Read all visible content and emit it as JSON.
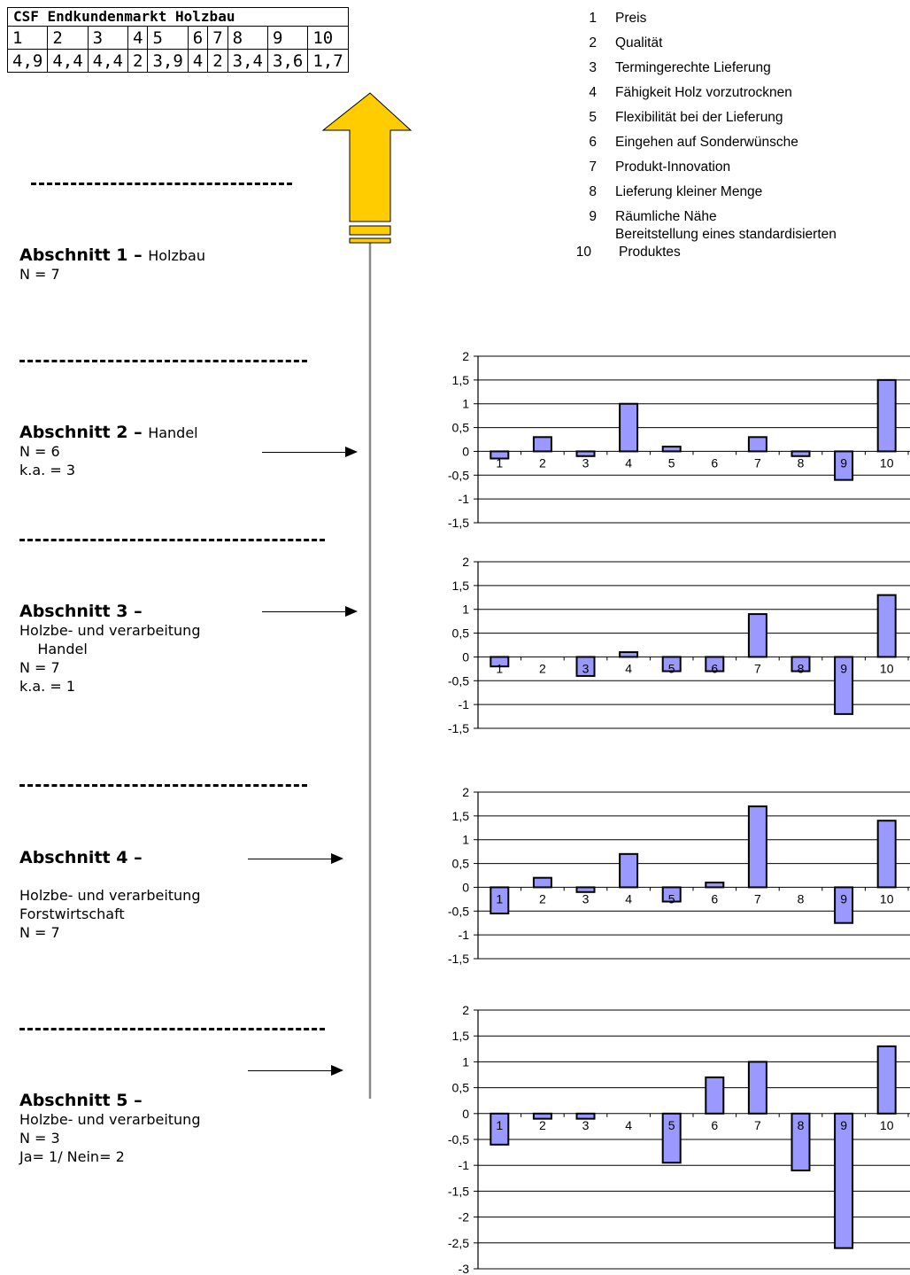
{
  "table": {
    "title": "CSF Endkundenmarkt Holzbau",
    "headers": [
      "1",
      "2",
      "3",
      "4",
      "5",
      "6",
      "7",
      "8",
      "9",
      "10"
    ],
    "values": [
      "4,9",
      "4,4",
      "4,4",
      "2",
      "3,9",
      "4",
      "2",
      "3,4",
      "3,6",
      "1,7"
    ]
  },
  "legend": [
    {
      "num": "1",
      "label": "Preis"
    },
    {
      "num": "2",
      "label": "Qualität"
    },
    {
      "num": "3",
      "label": "Termingerechte Lieferung"
    },
    {
      "num": "4",
      "label": "Fähigkeit Holz vorzutrocknen"
    },
    {
      "num": "5",
      "label": "Flexibilität bei der Lieferung"
    },
    {
      "num": "6",
      "label": "Eingehen auf Sonderwünsche"
    },
    {
      "num": "7",
      "label": "Produkt-Innovation"
    },
    {
      "num": "8",
      "label": "Lieferung kleiner Menge"
    },
    {
      "num": "9",
      "label": "Räumliche Nähe"
    },
    {
      "num": "",
      "label": "Bereitstellung eines standardisierten"
    },
    {
      "num": "10",
      "label": "Produktes"
    }
  ],
  "sections": [
    {
      "title": "Abschnitt 1",
      "dash": " – ",
      "subtitle": "Holzbau",
      "lines": "N = 7"
    },
    {
      "title": "Abschnitt 2",
      "dash": " – ",
      "subtitle": "Handel",
      "lines": "N = 6\nk.a. = 3"
    },
    {
      "title": "Abschnitt 3",
      "dash": " –",
      "subtitle": "",
      "lines": "Holzbe- und verarbeitung\n    Handel\nN = 7\nk.a. = 1"
    },
    {
      "title": "Abschnitt 4",
      "dash": " –",
      "subtitle": "",
      "lines": "\nHolzbe- und verarbeitung\nForstwirtschaft\nN = 7"
    },
    {
      "title": "Abschnitt 5",
      "dash": " –",
      "subtitle": "",
      "lines": "Holzbe- und verarbeitung\nN = 3\nJa= 1/ Nein= 2"
    }
  ],
  "colors": {
    "bar": "#9999ff",
    "arrow": "#ffcc00"
  },
  "chart_data": [
    {
      "type": "bar",
      "categories": [
        "1",
        "2",
        "3",
        "4",
        "5",
        "6",
        "7",
        "8",
        "9",
        "10"
      ],
      "values": [
        -0.15,
        0.3,
        -0.1,
        1.0,
        0.1,
        0,
        0.3,
        -0.1,
        -0.6,
        1.5
      ],
      "ylim": [
        -1.5,
        2
      ],
      "yticks": [
        "2",
        "1,5",
        "1",
        "0,5",
        "0",
        "-0,5",
        "-1",
        "-1,5"
      ]
    },
    {
      "type": "bar",
      "categories": [
        "1",
        "2",
        "3",
        "4",
        "5",
        "6",
        "7",
        "8",
        "9",
        "10"
      ],
      "values": [
        -0.2,
        0,
        -0.4,
        0.1,
        -0.3,
        -0.3,
        0.9,
        -0.3,
        -1.2,
        1.3
      ],
      "ylim": [
        -1.5,
        2
      ],
      "yticks": [
        "2",
        "1,5",
        "1",
        "0,5",
        "0",
        "-0,5",
        "-1",
        "-1,5"
      ]
    },
    {
      "type": "bar",
      "categories": [
        "1",
        "2",
        "3",
        "4",
        "5",
        "6",
        "7",
        "8",
        "9",
        "10"
      ],
      "values": [
        -0.55,
        0.2,
        -0.1,
        0.7,
        -0.3,
        0.1,
        1.7,
        0,
        -0.75,
        1.4
      ],
      "ylim": [
        -1.5,
        2
      ],
      "yticks": [
        "2",
        "1,5",
        "1",
        "0,5",
        "0",
        "-0,5",
        "-1",
        "-1,5"
      ]
    },
    {
      "type": "bar",
      "categories": [
        "1",
        "2",
        "3",
        "4",
        "5",
        "6",
        "7",
        "8",
        "9",
        "10"
      ],
      "values": [
        -0.6,
        -0.1,
        -0.1,
        0,
        -0.95,
        0.7,
        1.0,
        -1.1,
        -2.6,
        1.3
      ],
      "ylim": [
        -3,
        2
      ],
      "yticks": [
        "2",
        "1,5",
        "1",
        "0,5",
        "0",
        "-0,5",
        "-1",
        "-1,5",
        "-2",
        "-2,5",
        "-3"
      ]
    }
  ]
}
